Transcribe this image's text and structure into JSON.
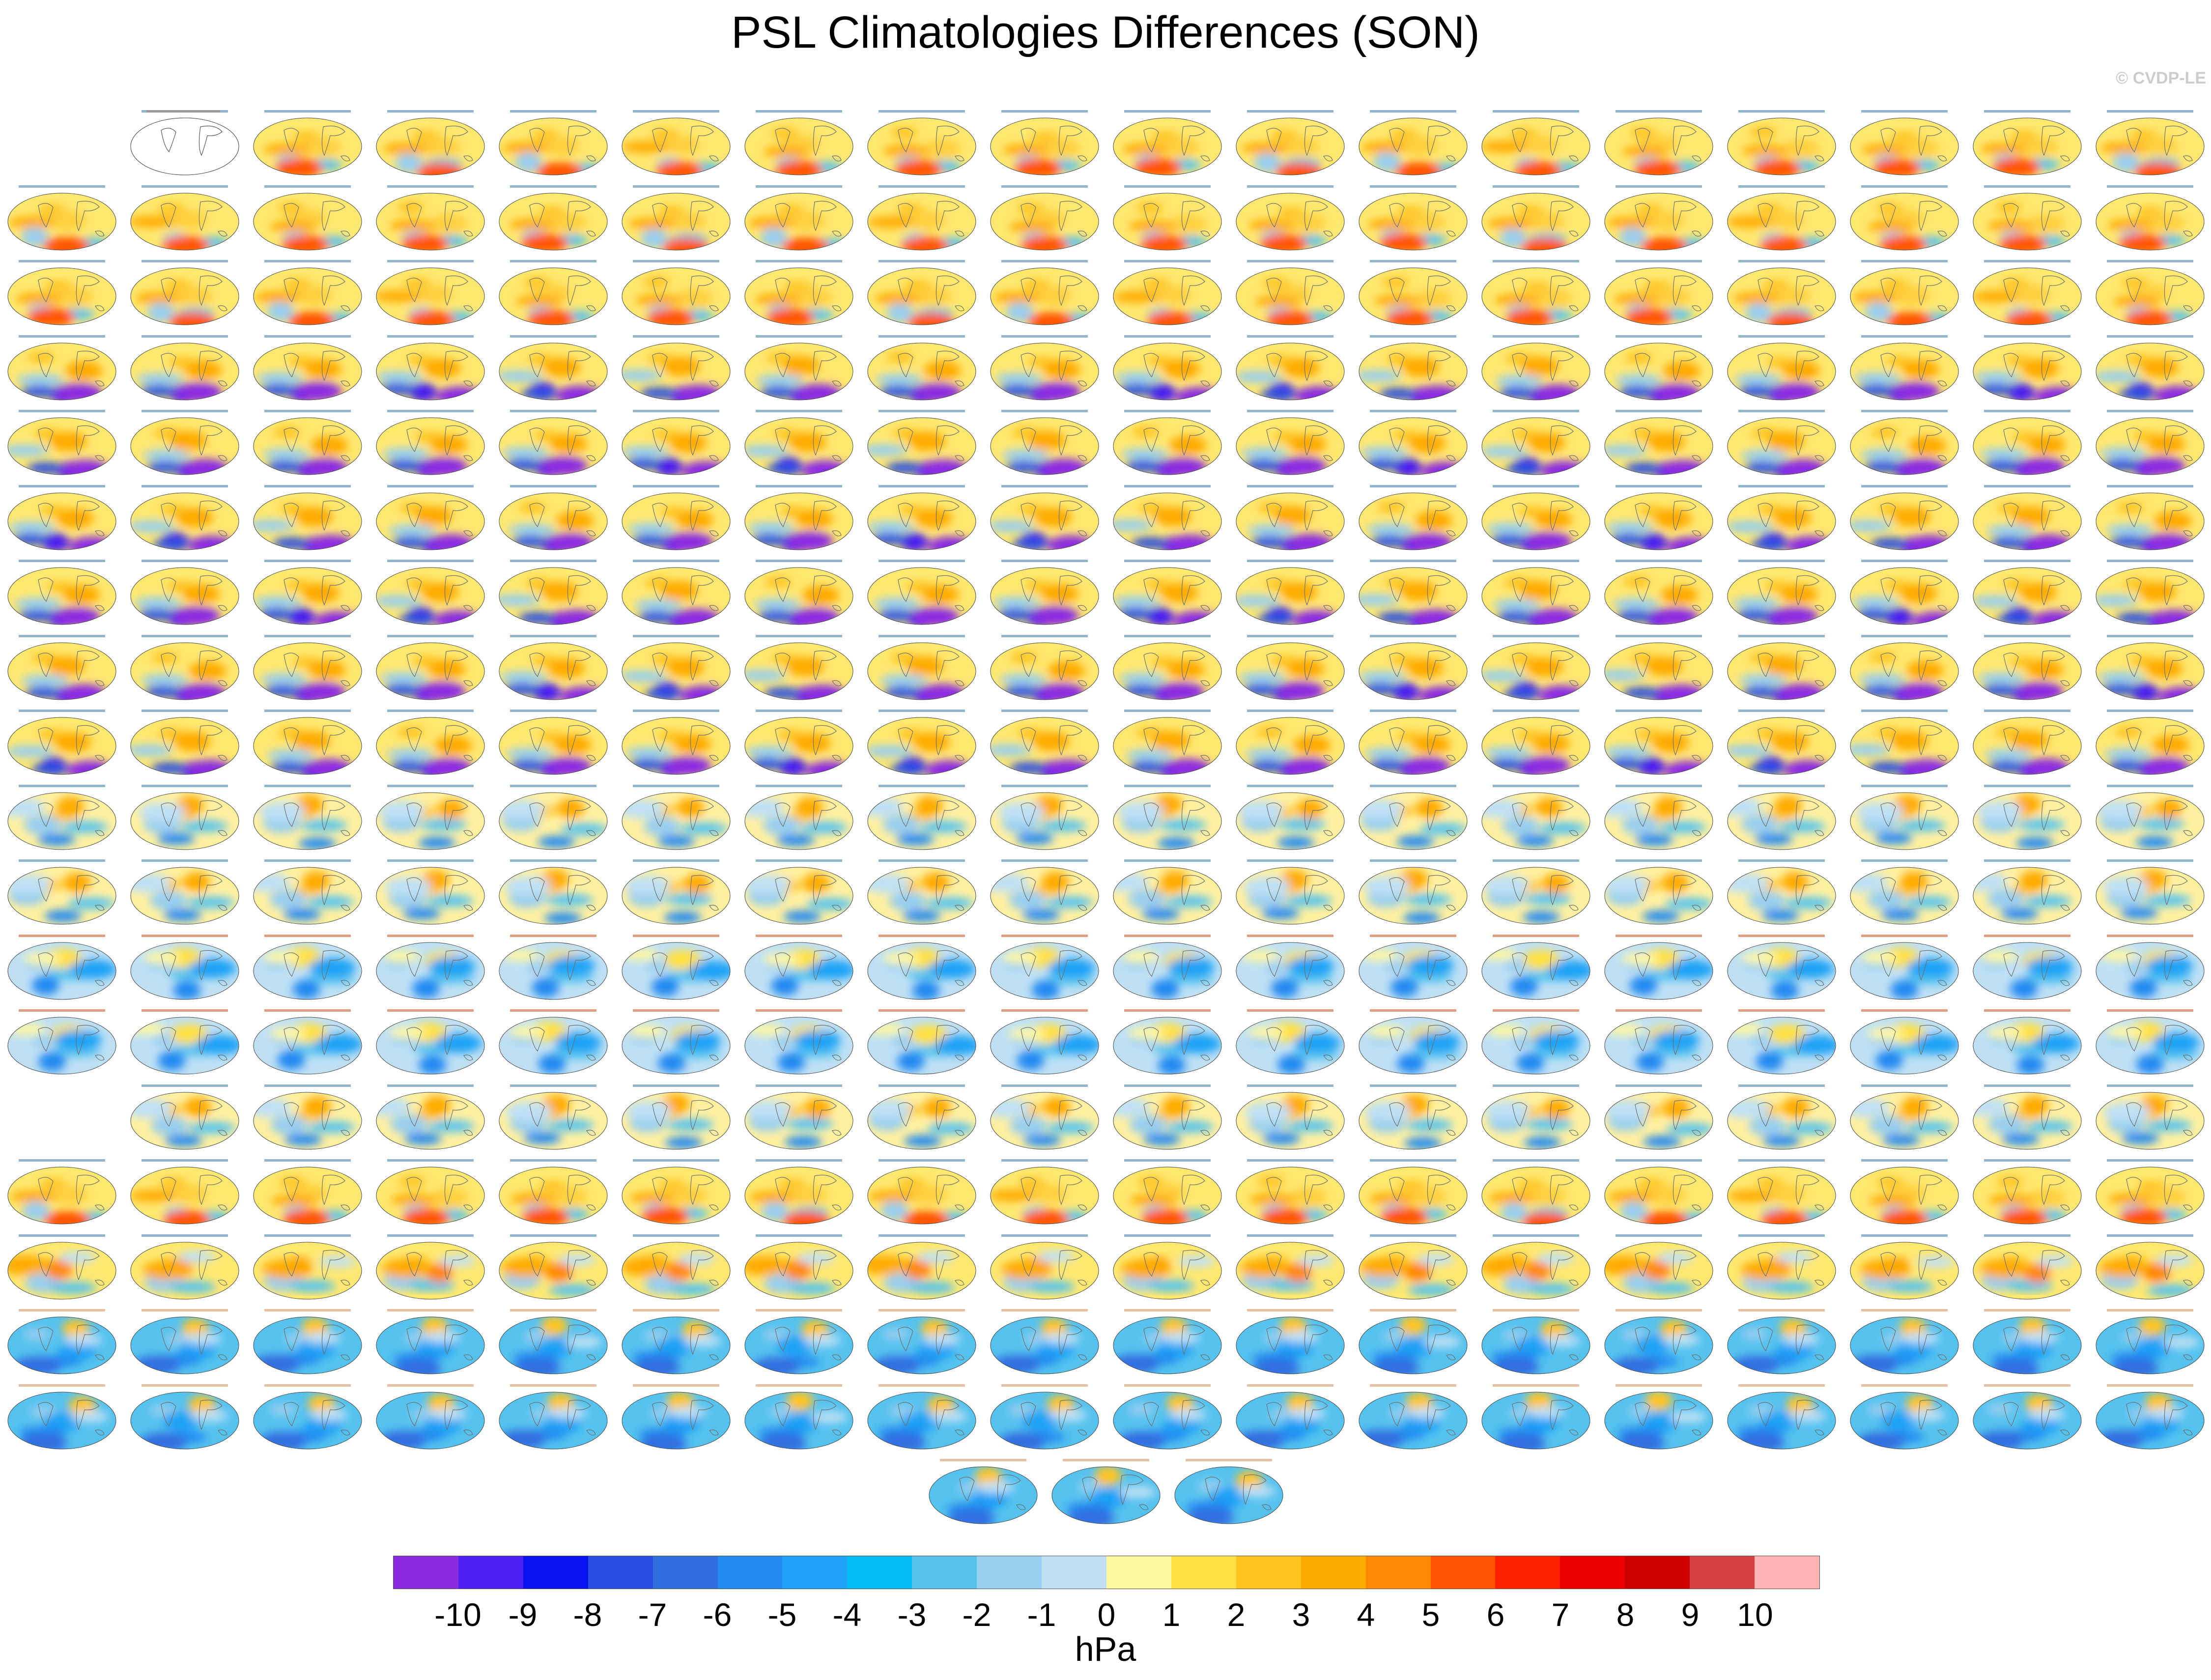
{
  "title": "PSL Climatologies Differences (SON)",
  "credit": "© CVDP-LE",
  "colorbar": {
    "units": "hPa",
    "tick_labels": [
      "-10",
      "-9",
      "-8",
      "-7",
      "-6",
      "-5",
      "-4",
      "-3",
      "-2",
      "-1",
      "0",
      "1",
      "2",
      "3",
      "4",
      "5",
      "6",
      "7",
      "8",
      "9",
      "10"
    ],
    "colors": [
      "#8a2be2",
      "#4a1ff0",
      "#0a14f0",
      "#2a4fe0",
      "#336ee0",
      "#2489f0",
      "#1ea2f5",
      "#04bcf5",
      "#55c2ee",
      "#98ceee",
      "#bfe0f4",
      "#fff8a0",
      "#ffe040",
      "#ffc420",
      "#ffaa00",
      "#ff8800",
      "#ff5500",
      "#ff2200",
      "#ee0000",
      "#cc0000",
      "#d84040",
      "#ffb3b3"
    ]
  },
  "panels": {
    "columns": 18,
    "rows": [
      {
        "count": 17,
        "start_col": 1,
        "style": "warm"
      },
      {
        "count": 18,
        "start_col": 0,
        "style": "warm"
      },
      {
        "count": 18,
        "start_col": 0,
        "style": "warm"
      },
      {
        "count": 18,
        "start_col": 0,
        "style": "warm-south"
      },
      {
        "count": 18,
        "start_col": 0,
        "style": "warm-south"
      },
      {
        "count": 18,
        "start_col": 0,
        "style": "warm-south"
      },
      {
        "count": 18,
        "start_col": 0,
        "style": "warm-south"
      },
      {
        "count": 18,
        "start_col": 0,
        "style": "warm-south"
      },
      {
        "count": 18,
        "start_col": 0,
        "style": "warm-south"
      },
      {
        "count": 18,
        "start_col": 0,
        "style": "mixed"
      },
      {
        "count": 18,
        "start_col": 0,
        "style": "mixed"
      },
      {
        "count": 18,
        "start_col": 0,
        "style": "cool"
      },
      {
        "count": 18,
        "start_col": 0,
        "style": "cool"
      },
      {
        "count": 17,
        "start_col": 1,
        "style": "mixed"
      },
      {
        "count": 18,
        "start_col": 0,
        "style": "warm"
      },
      {
        "count": 18,
        "start_col": 0,
        "style": "split"
      },
      {
        "count": 18,
        "start_col": 0,
        "style": "blue"
      },
      {
        "count": 18,
        "start_col": 0,
        "style": "blue"
      },
      {
        "count": 3,
        "start_col": 7.5,
        "style": "blue"
      }
    ]
  }
}
